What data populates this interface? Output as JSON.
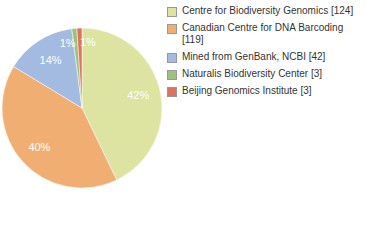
{
  "chart_data": {
    "type": "pie",
    "categories": [
      "Centre for Biodiversity Genomics [124]",
      "Canadian Centre for DNA Barcoding [119]",
      "Mined from GenBank, NCBI [42]",
      "Naturalis Biodiversity Center [3]",
      "Beijing Genomics Institute [3]"
    ],
    "values": [
      42,
      40,
      14,
      1,
      1
    ],
    "value_labels": [
      "42%",
      "40%",
      "14%",
      "1%",
      "1%"
    ],
    "colors": [
      "#dde3a1",
      "#f0ae73",
      "#a3bbe0",
      "#9dc27d",
      "#e0715a"
    ],
    "data_labels": true,
    "legend": "right"
  }
}
